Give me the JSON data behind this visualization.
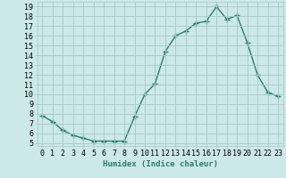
{
  "x": [
    0,
    1,
    2,
    3,
    4,
    5,
    6,
    7,
    8,
    9,
    10,
    11,
    12,
    13,
    14,
    15,
    16,
    17,
    18,
    19,
    20,
    21,
    22,
    23
  ],
  "y": [
    7.8,
    7.2,
    6.3,
    5.8,
    5.5,
    5.2,
    5.2,
    5.2,
    5.2,
    7.7,
    10.0,
    11.1,
    14.4,
    16.0,
    16.5,
    17.3,
    17.5,
    19.0,
    17.7,
    18.1,
    15.3,
    12.0,
    10.2,
    9.8
  ],
  "line_color": "#2d7d6e",
  "marker": "+",
  "marker_size": 4,
  "bg_color": "#cce8e8",
  "grid_color": "#a8c8c8",
  "xlabel": "Humidex (Indice chaleur)",
  "xlim": [
    -0.5,
    23.5
  ],
  "ylim": [
    4.7,
    19.5
  ],
  "yticks": [
    5,
    6,
    7,
    8,
    9,
    10,
    11,
    12,
    13,
    14,
    15,
    16,
    17,
    18,
    19
  ],
  "xticks": [
    0,
    1,
    2,
    3,
    4,
    5,
    6,
    7,
    8,
    9,
    10,
    11,
    12,
    13,
    14,
    15,
    16,
    17,
    18,
    19,
    20,
    21,
    22,
    23
  ],
  "label_fontsize": 6.5,
  "tick_fontsize": 6.0,
  "linewidth": 1.0,
  "marker_linewidth": 1.0
}
